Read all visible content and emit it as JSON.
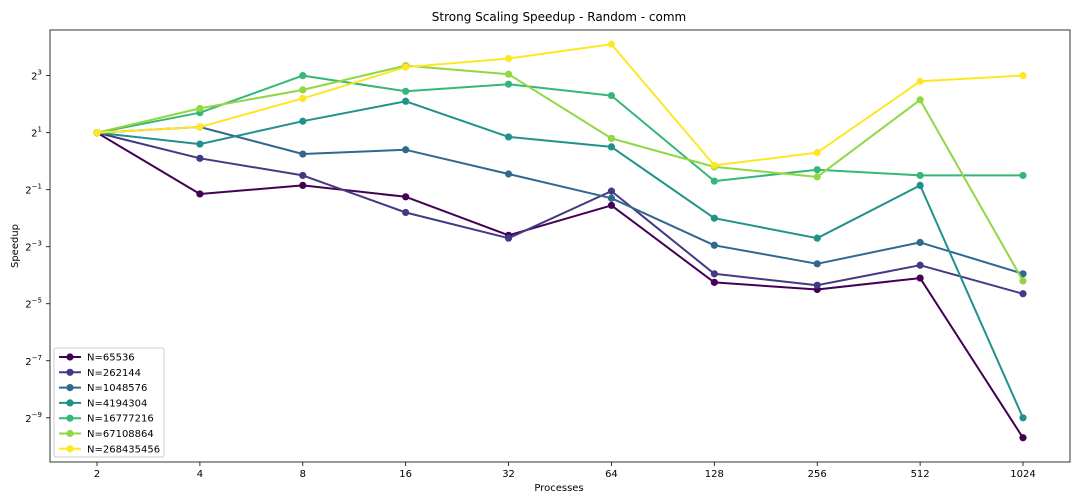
{
  "chart_data": {
    "type": "line",
    "title": "Strong Scaling Speedup - Random - comm",
    "xlabel": "Processes",
    "ylabel": "Speedup",
    "x_scale": "log2",
    "y_scale": "log2",
    "categories": [
      "2",
      "4",
      "8",
      "16",
      "32",
      "64",
      "128",
      "256",
      "512",
      "1024"
    ],
    "y_ticks": [
      {
        "base": "2",
        "exp": "−9",
        "log2": -9
      },
      {
        "base": "2",
        "exp": "−7",
        "log2": -7
      },
      {
        "base": "2",
        "exp": "−5",
        "log2": -5
      },
      {
        "base": "2",
        "exp": "−3",
        "log2": -3
      },
      {
        "base": "2",
        "exp": "−1",
        "log2": -1
      },
      {
        "base": "2",
        "exp": "1",
        "log2": 1
      },
      {
        "base": "2",
        "exp": "3",
        "log2": 3
      }
    ],
    "ylim_log2": [
      -10.55,
      4.6
    ],
    "grid": false,
    "legend_position": "lower-left",
    "series": [
      {
        "name": "N=65536",
        "color": "#440154",
        "log2_values": [
          1.0,
          -1.15,
          -0.85,
          -1.25,
          -2.6,
          -1.55,
          -4.25,
          -4.5,
          -4.1,
          -9.7
        ]
      },
      {
        "name": "N=262144",
        "color": "#443983",
        "log2_values": [
          1.0,
          0.1,
          -0.5,
          -1.8,
          -2.7,
          -1.05,
          -3.95,
          -4.35,
          -3.65,
          -4.65
        ]
      },
      {
        "name": "N=1048576",
        "color": "#31688e",
        "log2_values": [
          1.0,
          1.2,
          0.25,
          0.4,
          -0.45,
          -1.3,
          -2.95,
          -3.6,
          -2.85,
          -3.95
        ]
      },
      {
        "name": "N=4194304",
        "color": "#21918c",
        "log2_values": [
          1.0,
          0.6,
          1.4,
          2.1,
          0.85,
          0.5,
          -2.0,
          -2.7,
          -0.85,
          -9.0
        ]
      },
      {
        "name": "N=16777216",
        "color": "#35b779",
        "log2_values": [
          1.0,
          1.7,
          3.0,
          2.45,
          2.7,
          2.3,
          -0.7,
          -0.3,
          -0.5,
          -0.5
        ]
      },
      {
        "name": "N=67108864",
        "color": "#90d743",
        "log2_values": [
          1.0,
          1.85,
          2.5,
          3.35,
          3.05,
          0.8,
          -0.2,
          -0.55,
          2.15,
          -4.2
        ]
      },
      {
        "name": "N=268435456",
        "color": "#fde725",
        "log2_values": [
          1.0,
          1.2,
          2.2,
          3.3,
          3.6,
          4.1,
          -0.15,
          0.3,
          2.8,
          3.0
        ]
      }
    ]
  }
}
